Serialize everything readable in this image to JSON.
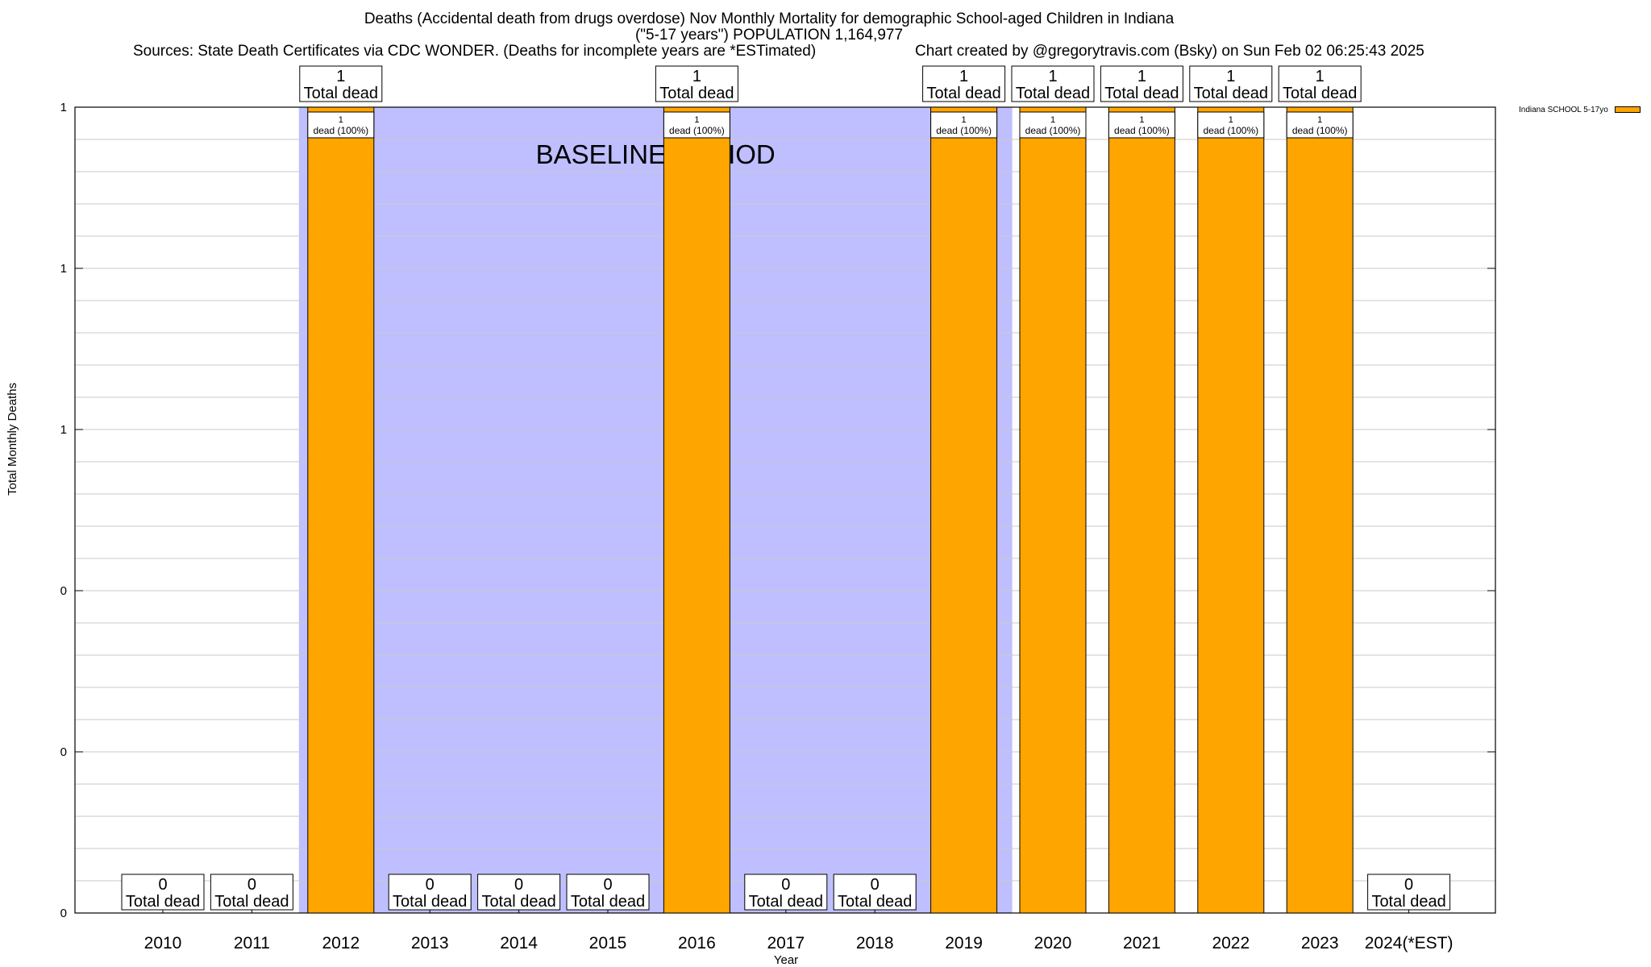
{
  "title": {
    "line1": "Deaths (Accidental death from drugs overdose) Nov Monthly Mortality for demographic School-aged Children in Indiana",
    "line2": "(\"5-17 years\") POPULATION 1,164,977",
    "sources": "Sources: State Death Certificates via CDC WONDER. (Deaths for incomplete years are *ESTimated)",
    "credit": "Chart created by @gregorytravis.com (Bsky) on Sun Feb 02 06:25:43 2025"
  },
  "chart_data": {
    "type": "bar",
    "xlabel": "Year",
    "ylabel": "Total Monthly Deaths",
    "ylim": [
      0,
      1
    ],
    "y_tick_labels": [
      "0",
      "0",
      "0",
      "1",
      "1",
      "1"
    ],
    "grid": true,
    "legend_position": "top-right",
    "categories": [
      "2010",
      "2011",
      "2012",
      "2013",
      "2014",
      "2015",
      "2016",
      "2017",
      "2018",
      "2019",
      "2020",
      "2021",
      "2022",
      "2023",
      "2024(*EST)"
    ],
    "series": [
      {
        "name": "Indiana SCHOOL 5-17yo",
        "color": "#ffa500",
        "values": [
          0,
          0,
          1,
          0,
          0,
          0,
          1,
          0,
          0,
          1,
          1,
          1,
          1,
          1,
          0
        ]
      }
    ],
    "total_label_text": "Total dead",
    "bar_label_text": "dead (100%)",
    "baseline_period": {
      "label": "BASELINE PERIOD",
      "start": "2012",
      "end": "2019",
      "color": "#bfbfff"
    }
  }
}
